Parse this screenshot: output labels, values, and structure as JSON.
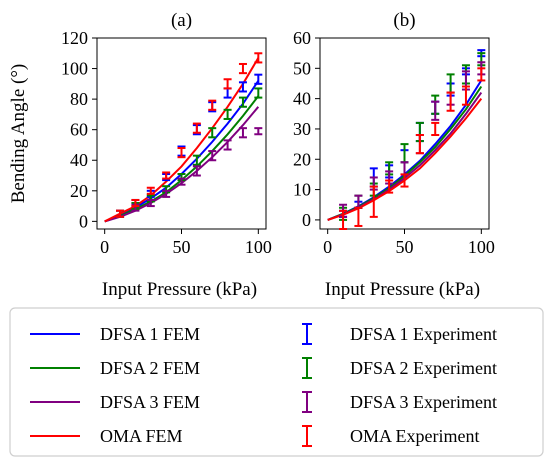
{
  "chart_data": [
    {
      "type": "line",
      "title": "(a)",
      "xlabel": "Input Pressure (kPa)",
      "ylabel": "Bending Angle (°)",
      "xlim": [
        -5,
        105
      ],
      "ylim": [
        -5,
        120
      ],
      "xticks": [
        0,
        50,
        100
      ],
      "yticks": [
        0,
        20,
        40,
        60,
        80,
        100,
        120
      ],
      "grid": false,
      "fem": [
        {
          "name": "DFSA 1 FEM",
          "color": "#0000ff",
          "x": [
            0,
            10,
            20,
            30,
            40,
            50,
            60,
            70,
            80,
            90,
            100
          ],
          "y": [
            0,
            4,
            9,
            15,
            22,
            31,
            41,
            52,
            64,
            77,
            92
          ]
        },
        {
          "name": "DFSA 2 FEM",
          "color": "#008000",
          "x": [
            0,
            10,
            20,
            30,
            40,
            50,
            60,
            70,
            80,
            90,
            100
          ],
          "y": [
            0,
            3.5,
            8,
            13,
            19,
            27,
            36,
            46,
            57,
            69,
            82
          ]
        },
        {
          "name": "DFSA 3 FEM",
          "color": "#800080",
          "x": [
            0,
            10,
            20,
            30,
            40,
            50,
            60,
            70,
            80,
            90,
            100
          ],
          "y": [
            0,
            3,
            7,
            12,
            18,
            25,
            33,
            42,
            52,
            63,
            75
          ]
        },
        {
          "name": "OMA  FEM",
          "color": "#ff0000",
          "x": [
            0,
            10,
            20,
            30,
            40,
            50,
            60,
            70,
            80,
            90,
            100
          ],
          "y": [
            0,
            5,
            10,
            17,
            26,
            36,
            48,
            61,
            75,
            90,
            107
          ]
        }
      ],
      "experiment": [
        {
          "name": "DFSA 1 Experiment",
          "color": "#0000ff",
          "x": [
            10,
            20,
            30,
            40,
            50,
            60,
            70,
            80,
            90,
            100
          ],
          "y": [
            5,
            12,
            18,
            29,
            46,
            60,
            75,
            84,
            88,
            93
          ],
          "err": [
            2,
            2,
            2,
            2,
            3,
            3,
            3,
            3,
            3,
            3
          ]
        },
        {
          "name": "DFSA 2 Experiment",
          "color": "#008000",
          "x": [
            10,
            20,
            30,
            40,
            50,
            60,
            70,
            80,
            90,
            100
          ],
          "y": [
            5,
            10,
            15,
            21,
            29,
            40,
            58,
            70,
            78,
            84
          ],
          "err": [
            2,
            2,
            2,
            2,
            2,
            3,
            3,
            3,
            3,
            3
          ]
        },
        {
          "name": "DFSA 3 Experiment",
          "color": "#800080",
          "x": [
            10,
            20,
            30,
            40,
            50,
            60,
            70,
            80,
            90,
            100
          ],
          "y": [
            5,
            9,
            12,
            18,
            26,
            33,
            43,
            50,
            58,
            59
          ],
          "err": [
            2,
            2,
            2,
            2,
            2,
            3,
            3,
            3,
            3,
            2
          ]
        },
        {
          "name": "OMA Experiment",
          "color": "#ff0000",
          "x": [
            10,
            20,
            30,
            40,
            50,
            60,
            70,
            80,
            90,
            100
          ],
          "y": [
            5,
            12,
            20,
            30,
            45,
            61,
            76,
            90,
            100,
            107
          ],
          "err": [
            2,
            2,
            2,
            2,
            3,
            3,
            3,
            3,
            3,
            3
          ]
        }
      ]
    },
    {
      "type": "line",
      "title": "(b)",
      "xlabel": "Input Pressure (kPa)",
      "ylabel": "",
      "xlim": [
        -5,
        105
      ],
      "ylim": [
        -3,
        60
      ],
      "xticks": [
        0,
        50,
        100
      ],
      "yticks": [
        0,
        10,
        20,
        30,
        40,
        50,
        60
      ],
      "grid": false,
      "fem": [
        {
          "name": "DFSA 1 FEM",
          "color": "#0000ff",
          "x": [
            0,
            10,
            20,
            30,
            40,
            50,
            60,
            70,
            80,
            90,
            100
          ],
          "y": [
            0,
            2,
            4.5,
            7.5,
            11,
            15,
            19.5,
            25,
            31,
            38,
            46
          ]
        },
        {
          "name": "DFSA 2 FEM",
          "color": "#008000",
          "x": [
            0,
            10,
            20,
            30,
            40,
            50,
            60,
            70,
            80,
            90,
            100
          ],
          "y": [
            0,
            2,
            4.3,
            7.2,
            10.5,
            14.5,
            19,
            24,
            30,
            36.5,
            44
          ]
        },
        {
          "name": "DFSA 3 FEM",
          "color": "#800080",
          "x": [
            0,
            10,
            20,
            30,
            40,
            50,
            60,
            70,
            80,
            90,
            100
          ],
          "y": [
            0,
            1.8,
            4,
            6.8,
            10,
            13.8,
            18,
            23,
            28.5,
            35,
            42
          ]
        },
        {
          "name": "OMA  FEM",
          "color": "#ff0000",
          "x": [
            0,
            10,
            20,
            30,
            40,
            50,
            60,
            70,
            80,
            90,
            100
          ],
          "y": [
            0,
            1.7,
            3.8,
            6.5,
            9.5,
            13,
            17,
            22,
            27.5,
            33.5,
            40
          ]
        }
      ],
      "experiment": [
        {
          "name": "DFSA 1 Experiment",
          "color": "#0000ff",
          "x": [
            10,
            20,
            30,
            40,
            50,
            60,
            70,
            80,
            90,
            100
          ],
          "y": [
            2,
            5,
            14,
            16,
            21,
            29,
            37,
            43,
            49,
            55
          ],
          "err": [
            1,
            1,
            3,
            2,
            2,
            3,
            2,
            2,
            1,
            1
          ]
        },
        {
          "name": "DFSA 2 Experiment",
          "color": "#008000",
          "x": [
            10,
            20,
            30,
            40,
            50,
            60,
            70,
            80,
            90,
            100
          ],
          "y": [
            2,
            6,
            10,
            17,
            22,
            29,
            38,
            45,
            48,
            53
          ],
          "err": [
            2,
            2,
            2,
            2,
            3,
            3,
            3,
            3,
            3,
            2
          ]
        },
        {
          "name": "DFSA 3 Experiment",
          "color": "#800080",
          "x": [
            10,
            20,
            30,
            40,
            50,
            60,
            70,
            80,
            90,
            100
          ],
          "y": [
            3,
            6,
            12,
            14,
            17,
            25,
            36,
            40,
            46,
            50
          ],
          "err": [
            2,
            2,
            2,
            2,
            2,
            3,
            3,
            2,
            3,
            2
          ]
        },
        {
          "name": "OMA Experiment",
          "color": "#ff0000",
          "x": [
            10,
            20,
            30,
            40,
            50,
            60,
            70,
            80,
            90,
            100
          ],
          "y": [
            0,
            1,
            6,
            11,
            13,
            25,
            30,
            39,
            41,
            48
          ],
          "err": [
            3,
            3,
            5,
            2,
            2,
            3,
            2,
            3,
            3,
            2
          ]
        }
      ]
    }
  ],
  "legend": {
    "placement": "bottom",
    "items": [
      {
        "label": "DFSA 1 FEM",
        "kind": "line",
        "color": "#0000ff"
      },
      {
        "label": "DFSA 1 Experiment",
        "kind": "errorbar",
        "color": "#0000ff"
      },
      {
        "label": "DFSA 2 FEM",
        "kind": "line",
        "color": "#008000"
      },
      {
        "label": "DFSA 2 Experiment",
        "kind": "errorbar",
        "color": "#008000"
      },
      {
        "label": "DFSA 3 FEM",
        "kind": "line",
        "color": "#800080"
      },
      {
        "label": "DFSA 3 Experiment",
        "kind": "errorbar",
        "color": "#800080"
      },
      {
        "label": "OMA  FEM",
        "kind": "line",
        "color": "#ff0000"
      },
      {
        "label": "OMA Experiment",
        "kind": "errorbar",
        "color": "#ff0000"
      }
    ]
  }
}
